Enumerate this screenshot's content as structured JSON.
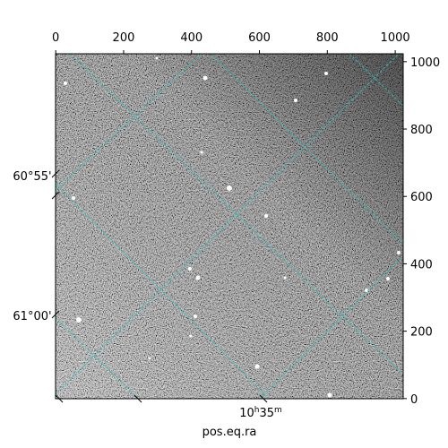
{
  "chart_data": {
    "type": "image",
    "xlabel": "pos.eq.ra",
    "xlim": [
      -0.5,
      1023.5
    ],
    "ylim": [
      -0.5,
      1023.5
    ],
    "xticks": [
      0,
      200,
      400,
      600,
      800,
      1000
    ],
    "yticks": [
      0,
      200,
      400,
      600,
      800,
      1000
    ],
    "world_y_ticks": [
      "60°55'",
      "61°00'"
    ],
    "world_x_tick": {
      "hours": "10",
      "h": "h",
      "minutes": "35",
      "m": "m"
    }
  }
}
